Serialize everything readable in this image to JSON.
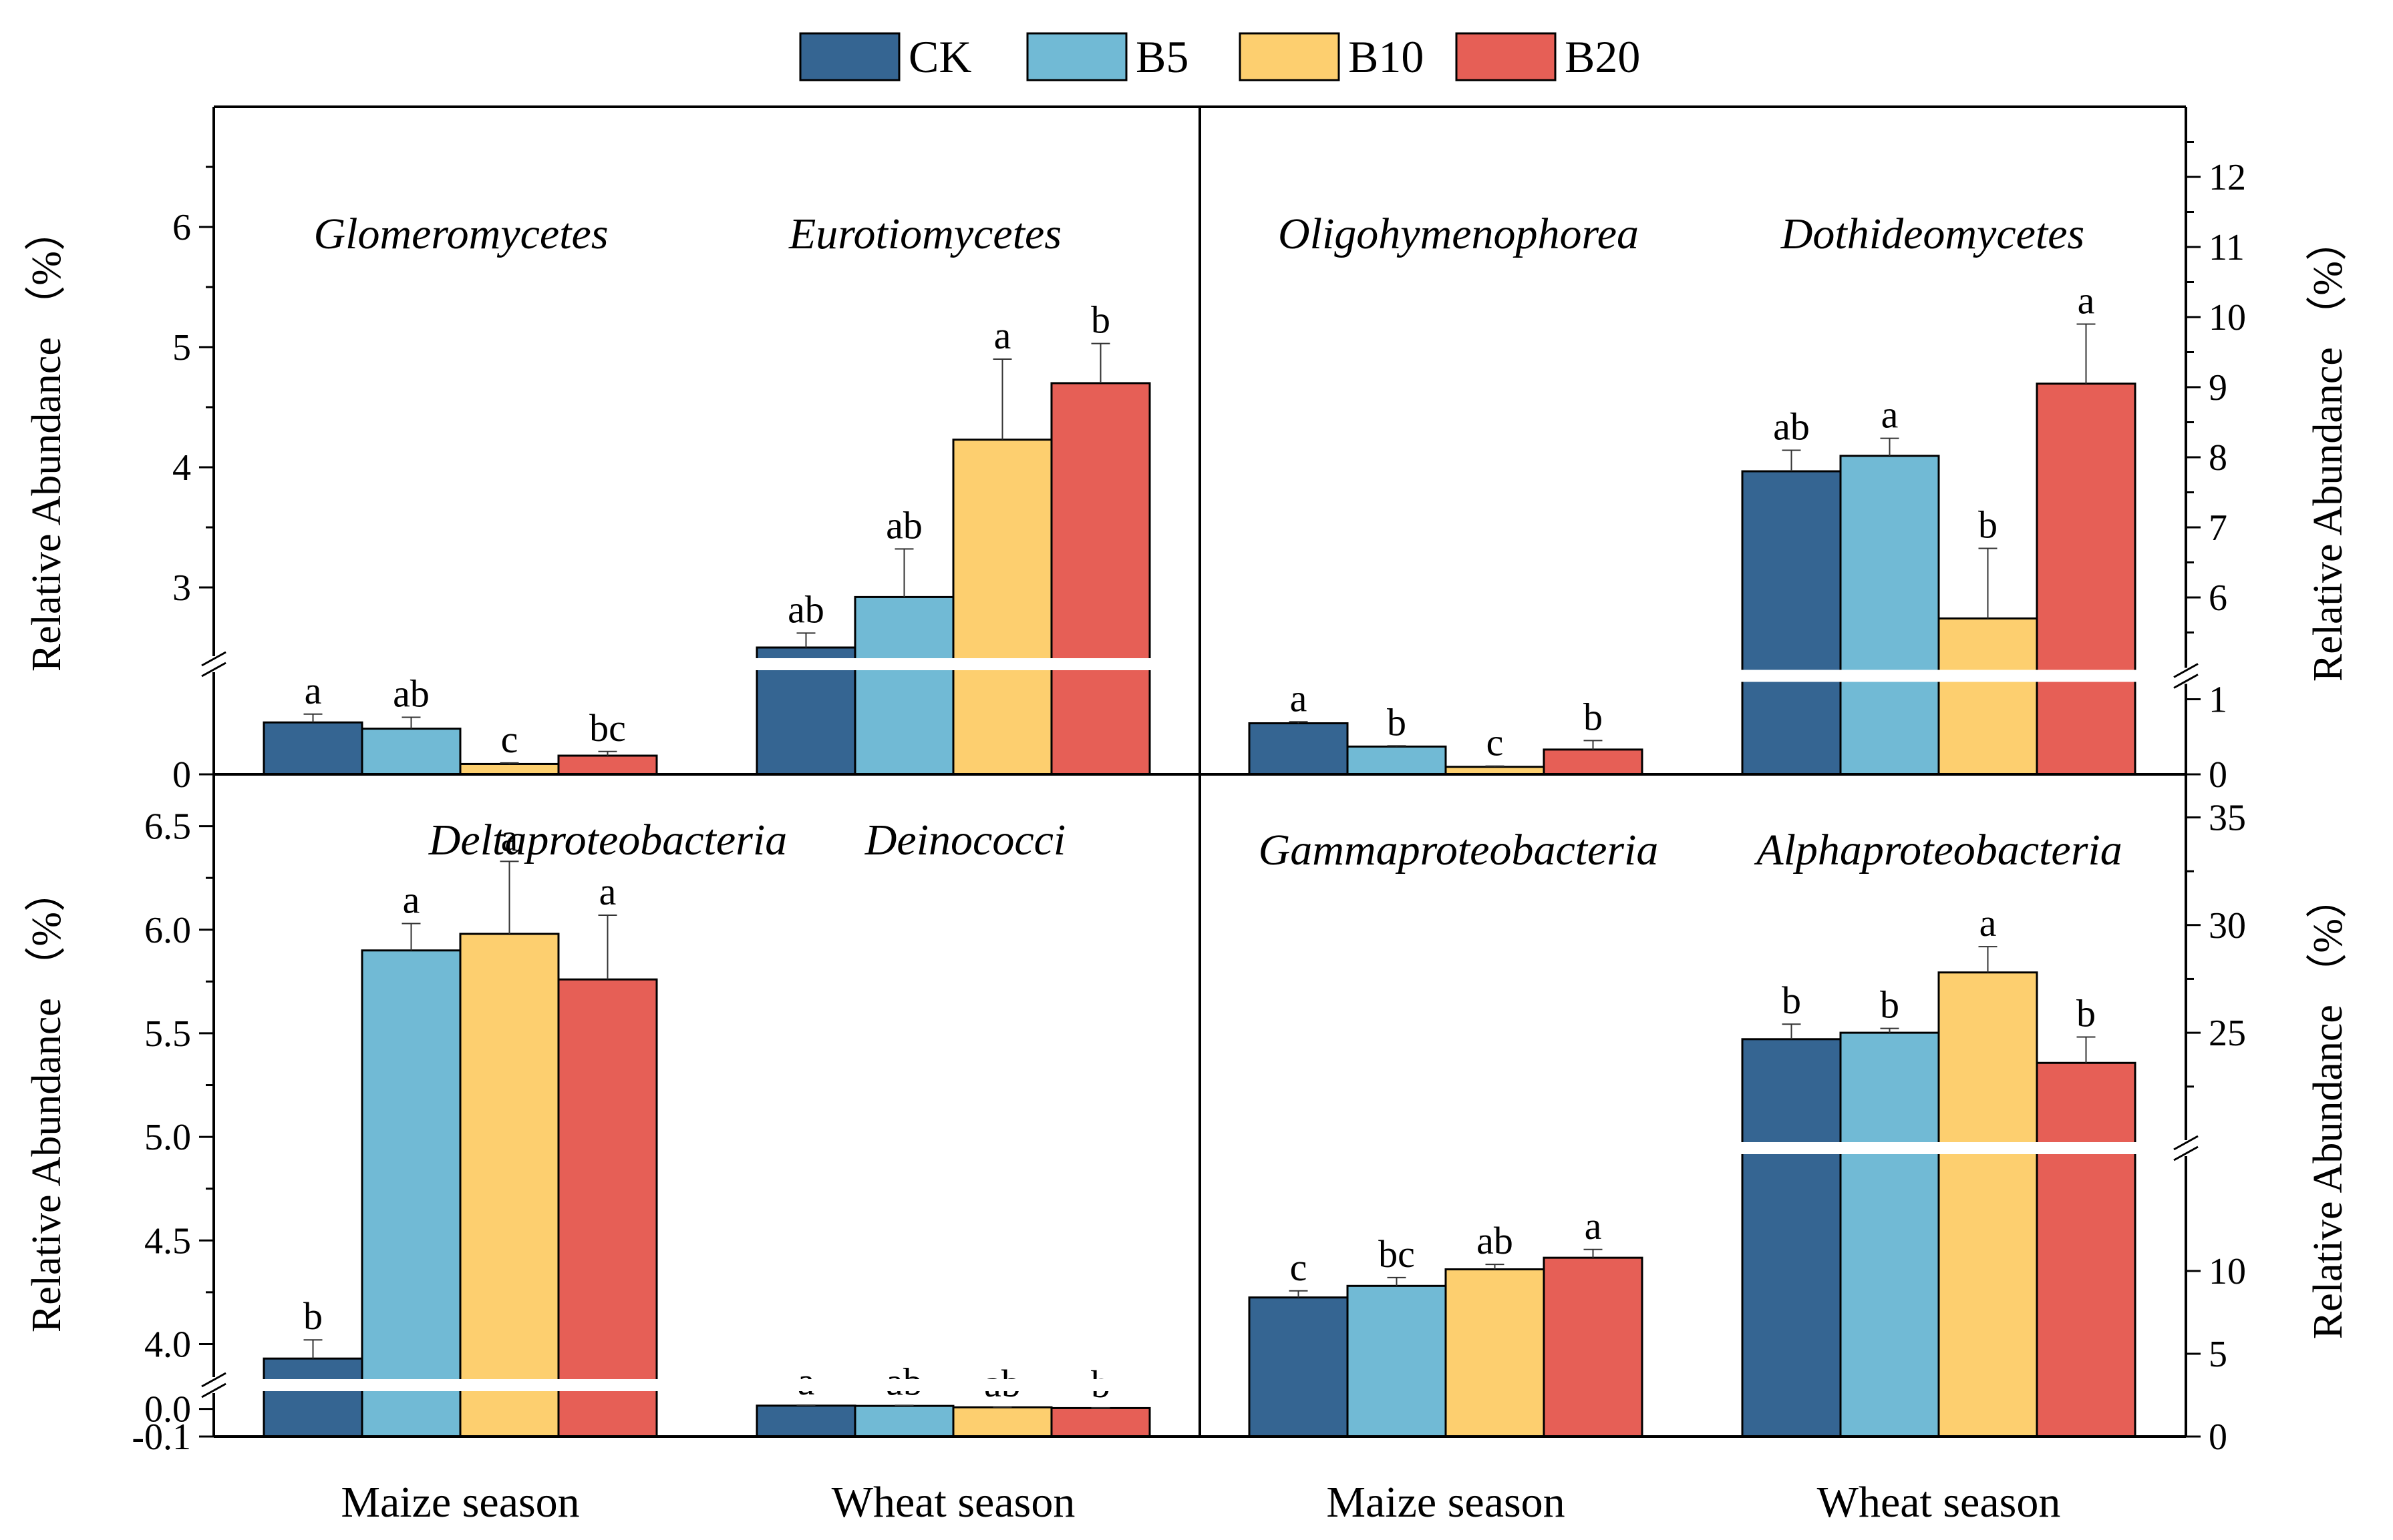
{
  "legend": [
    {
      "name": "CK",
      "color": "#356592"
    },
    {
      "name": "B5",
      "color": "#71BAD5"
    },
    {
      "name": "B10",
      "color": "#FDCF6F"
    },
    {
      "name": "B20",
      "color": "#E65F56"
    }
  ],
  "chart_data": [
    {
      "type": "bar",
      "panel": "top-left",
      "ylabel": "Relative Abundance （%）",
      "yaxis_side": "left",
      "axis_break": {
        "lower": [
          0,
          0.9
        ],
        "upper": [
          2.5,
          7.0
        ]
      },
      "ticks_lower": [
        {
          "v": 0,
          "label": "0"
        }
      ],
      "ticks_upper": [
        {
          "v": 3,
          "label": "3"
        },
        {
          "v": 4,
          "label": "4"
        },
        {
          "v": 5,
          "label": "5"
        },
        {
          "v": 6,
          "label": "6"
        }
      ],
      "groups": [
        {
          "title": "Glomeromycetes",
          "xlabel": "Maize season",
          "series": [
            {
              "name": "CK",
              "value": 0.5,
              "err": 0.08,
              "sig": "a"
            },
            {
              "name": "B5",
              "value": 0.44,
              "err": 0.11,
              "sig": "ab"
            },
            {
              "name": "B10",
              "value": 0.1,
              "err": 0.01,
              "sig": "c"
            },
            {
              "name": "B20",
              "value": 0.18,
              "err": 0.04,
              "sig": "bc"
            }
          ]
        },
        {
          "title": "Eurotiomycetes",
          "xlabel": "Wheat season",
          "series": [
            {
              "name": "CK",
              "value": 2.5,
              "err": 0.12,
              "sig": "ab"
            },
            {
              "name": "B5",
              "value": 2.92,
              "err": 0.4,
              "sig": "ab"
            },
            {
              "name": "B10",
              "value": 4.23,
              "err": 0.67,
              "sig": "a"
            },
            {
              "name": "B20",
              "value": 4.7,
              "err": 0.33,
              "sig": "b"
            }
          ]
        }
      ]
    },
    {
      "type": "bar",
      "panel": "top-right",
      "ylabel": "Relative Abundance （%）",
      "yaxis_side": "right",
      "axis_break": {
        "lower": [
          0,
          1.2
        ],
        "upper": [
          5.0,
          13.0
        ]
      },
      "ticks_lower": [
        {
          "v": 0,
          "label": "0"
        },
        {
          "v": 1,
          "label": "1"
        }
      ],
      "ticks_upper": [
        {
          "v": 6,
          "label": "6"
        },
        {
          "v": 7,
          "label": "7"
        },
        {
          "v": 8,
          "label": "8"
        },
        {
          "v": 9,
          "label": "9"
        },
        {
          "v": 10,
          "label": "10"
        },
        {
          "v": 11,
          "label": "11"
        },
        {
          "v": 12,
          "label": "12"
        }
      ],
      "groups": [
        {
          "title": "Oligohymenophorea",
          "xlabel": "Maize season",
          "series": [
            {
              "name": "CK",
              "value": 0.68,
              "err": 0.02,
              "sig": "a"
            },
            {
              "name": "B5",
              "value": 0.37,
              "err": 0.01,
              "sig": "b"
            },
            {
              "name": "B10",
              "value": 0.1,
              "err": 0.01,
              "sig": "c"
            },
            {
              "name": "B20",
              "value": 0.33,
              "err": 0.12,
              "sig": "b"
            }
          ]
        },
        {
          "title": "Dothideomycetes",
          "xlabel": "Wheat season",
          "series": [
            {
              "name": "CK",
              "value": 7.8,
              "err": 0.3,
              "sig": "ab"
            },
            {
              "name": "B5",
              "value": 8.02,
              "err": 0.25,
              "sig": "a"
            },
            {
              "name": "B10",
              "value": 5.7,
              "err": 1.0,
              "sig": "b"
            },
            {
              "name": "B20",
              "value": 9.05,
              "err": 0.85,
              "sig": "a"
            }
          ]
        }
      ]
    },
    {
      "type": "bar",
      "panel": "bottom-left",
      "ylabel": "Relative Abundance （%）",
      "yaxis_side": "left",
      "axis_break": {
        "lower": [
          -0.1,
          0.05
        ],
        "upper": [
          3.85,
          6.75
        ]
      },
      "ticks_lower": [
        {
          "v": 0,
          "label": "0.0"
        },
        {
          "v": -0.1,
          "label": "-0.1"
        }
      ],
      "ticks_upper": [
        {
          "v": 4.0,
          "label": "4.0"
        },
        {
          "v": 4.5,
          "label": "4.5"
        },
        {
          "v": 5.0,
          "label": "5.0"
        },
        {
          "v": 5.5,
          "label": "5.5"
        },
        {
          "v": 6.0,
          "label": "6.0"
        },
        {
          "v": 6.5,
          "label": "6.5"
        }
      ],
      "groups": [
        {
          "title": "Deltaproteobacteria",
          "xlabel": "Maize season",
          "series": [
            {
              "name": "CK",
              "value": 3.93,
              "err": 0.09,
              "sig": "b"
            },
            {
              "name": "B5",
              "value": 5.9,
              "err": 0.13,
              "sig": "a"
            },
            {
              "name": "B10",
              "value": 5.98,
              "err": 0.35,
              "sig": "a"
            },
            {
              "name": "B20",
              "value": 5.76,
              "err": 0.31,
              "sig": "a"
            }
          ]
        },
        {
          "title": "Deinococci",
          "xlabel": "Wheat season",
          "series": [
            {
              "name": "CK",
              "value": 0.012,
              "err": 0.002,
              "sig": "a"
            },
            {
              "name": "B5",
              "value": 0.011,
              "err": 0.002,
              "sig": "ab"
            },
            {
              "name": "B10",
              "value": 0.006,
              "err": 0.001,
              "sig": "ab"
            },
            {
              "name": "B20",
              "value": 0.003,
              "err": 0.001,
              "sig": "b"
            }
          ]
        }
      ]
    },
    {
      "type": "bar",
      "panel": "bottom-right",
      "ylabel": "Relative Abundance （%）",
      "yaxis_side": "right",
      "axis_break": {
        "lower": [
          0,
          15
        ],
        "upper": [
          21.5,
          37
        ]
      },
      "ticks_lower": [
        {
          "v": 0,
          "label": "0"
        },
        {
          "v": 5,
          "label": "5"
        },
        {
          "v": 10,
          "label": "10"
        }
      ],
      "ticks_upper": [
        {
          "v": 25,
          "label": "25"
        },
        {
          "v": 30,
          "label": "30"
        },
        {
          "v": 35,
          "label": "35"
        }
      ],
      "groups": [
        {
          "title": "Gammaproteobacteria",
          "xlabel": "Maize season",
          "series": [
            {
              "name": "CK",
              "value": 8.4,
              "err": 0.4,
              "sig": "c"
            },
            {
              "name": "B5",
              "value": 9.1,
              "err": 0.5,
              "sig": "bc"
            },
            {
              "name": "B10",
              "value": 10.1,
              "err": 0.3,
              "sig": "ab"
            },
            {
              "name": "B20",
              "value": 10.8,
              "err": 0.5,
              "sig": "a"
            }
          ]
        },
        {
          "title": "Alphaproteobacteria",
          "xlabel": "Wheat season",
          "series": [
            {
              "name": "CK",
              "value": 24.7,
              "err": 0.7,
              "sig": "b"
            },
            {
              "name": "B5",
              "value": 25.0,
              "err": 0.2,
              "sig": "b"
            },
            {
              "name": "B10",
              "value": 27.8,
              "err": 1.2,
              "sig": "a"
            },
            {
              "name": "B20",
              "value": 23.6,
              "err": 1.2,
              "sig": "b"
            }
          ]
        }
      ]
    }
  ]
}
